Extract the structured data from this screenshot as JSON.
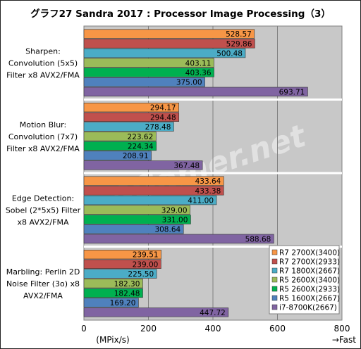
{
  "chart_data": {
    "type": "bar",
    "orientation": "horizontal",
    "title": "グラフ27   Sandra 2017 : Processor Image Processing（3）",
    "xlabel": "(MPix/s)",
    "xlabel_right": "→Fast",
    "xlim": [
      0,
      800
    ],
    "xticks": [
      0,
      200,
      400,
      600,
      800
    ],
    "grid": true,
    "legend_position": "bottom-right",
    "watermark": "4Gamer.net",
    "categories": [
      [
        "Sharpen:",
        "Convolution (5x5)",
        "Filter x8 AVX2/FMA"
      ],
      [
        "Motion Blur:",
        "Convolution (7x7)",
        "Filter x8 AVX2/FMA"
      ],
      [
        "Edge Detection:",
        "Sobel (2*5x5) Filter",
        "x8 AVX2/FMA"
      ],
      [
        "Marbling: Perlin 2D",
        "Noise Filter (3o) x8",
        "AVX2/FMA"
      ]
    ],
    "series": [
      {
        "name": "R7 2700X(3400)",
        "color": "#f79646",
        "values": [
          528.57,
          294.17,
          433.64,
          239.51
        ]
      },
      {
        "name": "R7 2700X(2933)",
        "color": "#c0504d",
        "values": [
          529.86,
          294.48,
          433.38,
          239.0
        ]
      },
      {
        "name": "R7 1800X(2667)",
        "color": "#4bacc6",
        "values": [
          500.48,
          278.48,
          411.0,
          225.5
        ]
      },
      {
        "name": "R5 2600X(3400)",
        "color": "#9bbb59",
        "values": [
          403.11,
          223.62,
          329.0,
          182.3
        ]
      },
      {
        "name": "R5 2600X(2933)",
        "color": "#00b050",
        "values": [
          403.36,
          224.34,
          331.0,
          182.48
        ]
      },
      {
        "name": "R5 1600X(2667)",
        "color": "#4f81bd",
        "values": [
          375.0,
          208.91,
          308.64,
          169.2
        ]
      },
      {
        "name": "i7-8700K(2667)",
        "color": "#8064a2",
        "values": [
          693.71,
          367.48,
          588.68,
          447.72
        ]
      }
    ],
    "value_format": "0.00"
  }
}
